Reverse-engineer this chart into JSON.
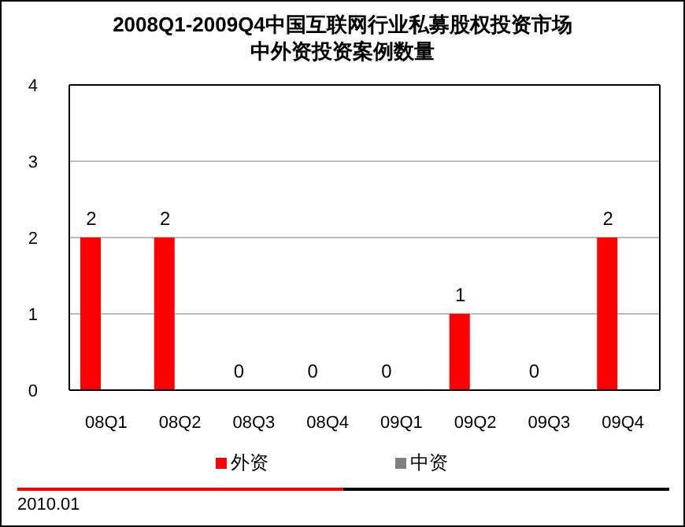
{
  "chart_data": {
    "type": "bar",
    "title": "2008Q1-2009Q4中国互联网行业私募股权投资市场",
    "subtitle": "中外资投资案例数量",
    "categories": [
      "08Q1",
      "08Q2",
      "08Q3",
      "08Q4",
      "09Q1",
      "09Q2",
      "09Q3",
      "09Q4"
    ],
    "series": [
      {
        "name": "外资",
        "color": "#ff0000",
        "values": [
          2,
          2,
          0,
          0,
          0,
          1,
          0,
          2
        ]
      },
      {
        "name": "中资",
        "color": "#808080",
        "values": [
          null,
          null,
          null,
          null,
          null,
          null,
          null,
          null
        ]
      }
    ],
    "ylim": [
      0,
      4
    ],
    "yticks": [
      0,
      1,
      2,
      3,
      4
    ],
    "grid": "y",
    "legend": "bottom",
    "data_labels": true,
    "annotations": [
      "2010.01"
    ]
  }
}
